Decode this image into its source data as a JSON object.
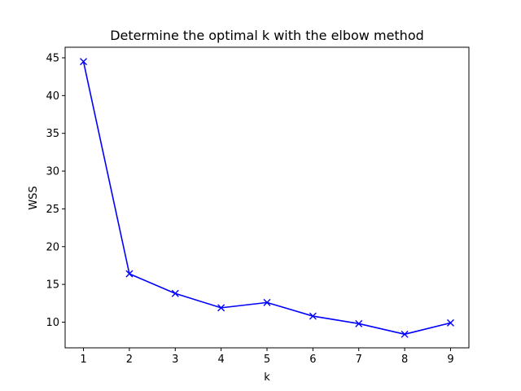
{
  "chart_data": {
    "type": "line",
    "title": "Determine the optimal k with the elbow method",
    "xlabel": "k",
    "ylabel": "WSS",
    "x": [
      1,
      2,
      3,
      4,
      5,
      6,
      7,
      8,
      9
    ],
    "xlim": [
      0.6,
      9.4
    ],
    "ylim": [
      6.6,
      46.4
    ],
    "xticks": [
      1,
      2,
      3,
      4,
      5,
      6,
      7,
      8,
      9
    ],
    "yticks": [
      10,
      15,
      20,
      25,
      30,
      35,
      40,
      45
    ],
    "grid": false,
    "legend": "none",
    "series": [
      {
        "marker": "x",
        "color": "#0000ff",
        "values": [
          44.5,
          16.4,
          13.8,
          11.9,
          12.6,
          10.8,
          9.8,
          8.4,
          9.9
        ]
      }
    ]
  }
}
